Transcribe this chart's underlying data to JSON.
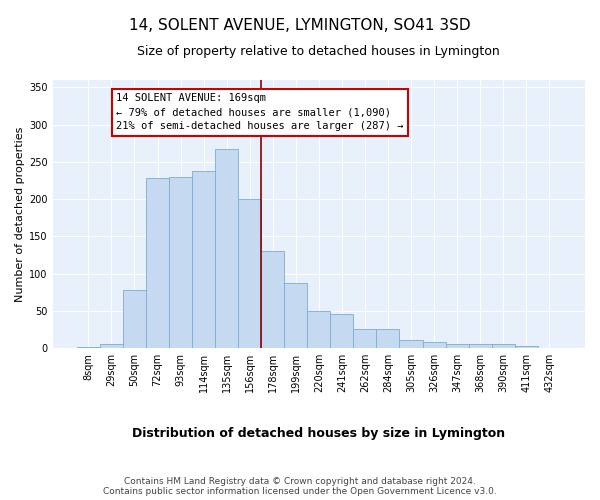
{
  "title": "14, SOLENT AVENUE, LYMINGTON, SO41 3SD",
  "subtitle": "Size of property relative to detached houses in Lymington",
  "xlabel": "Distribution of detached houses by size in Lymington",
  "ylabel": "Number of detached properties",
  "bar_labels": [
    "8sqm",
    "29sqm",
    "50sqm",
    "72sqm",
    "93sqm",
    "114sqm",
    "135sqm",
    "156sqm",
    "178sqm",
    "199sqm",
    "220sqm",
    "241sqm",
    "262sqm",
    "284sqm",
    "305sqm",
    "326sqm",
    "347sqm",
    "368sqm",
    "390sqm",
    "411sqm",
    "432sqm"
  ],
  "bar_values": [
    2,
    6,
    78,
    228,
    230,
    238,
    267,
    200,
    131,
    87,
    50,
    46,
    25,
    25,
    11,
    8,
    6,
    5,
    5,
    3,
    0
  ],
  "bar_color": "#c5d9f0",
  "bar_edge_color": "#7aadd4",
  "vline_x": 7.5,
  "vline_color": "#8b0000",
  "annotation_title": "14 SOLENT AVENUE: 169sqm",
  "annotation_line2": "← 79% of detached houses are smaller (1,090)",
  "annotation_line3": "21% of semi-detached houses are larger (287) →",
  "annotation_box_facecolor": "#ffffff",
  "annotation_box_edgecolor": "#cc0000",
  "ylim": [
    0,
    360
  ],
  "yticks": [
    0,
    50,
    100,
    150,
    200,
    250,
    300,
    350
  ],
  "footer1": "Contains HM Land Registry data © Crown copyright and database right 2024.",
  "footer2": "Contains public sector information licensed under the Open Government Licence v3.0.",
  "plot_bg_color": "#e8f0fb",
  "fig_bg_color": "#ffffff",
  "grid_color": "#ffffff",
  "title_fontsize": 11,
  "subtitle_fontsize": 9,
  "xlabel_fontsize": 9,
  "ylabel_fontsize": 8,
  "tick_fontsize": 7,
  "footer_fontsize": 6.5,
  "ann_fontsize": 7.5
}
